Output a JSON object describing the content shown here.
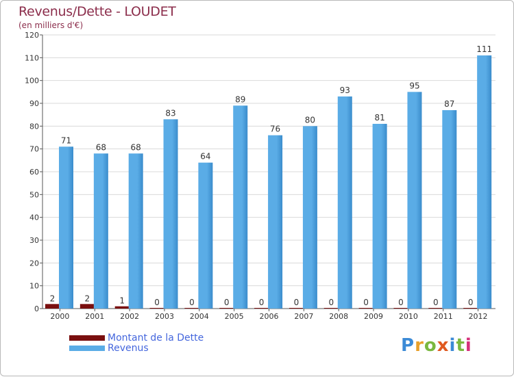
{
  "header": {
    "title": "Revenus/Dette - LOUDET",
    "subtitle": "(en milliers d'€)"
  },
  "legend": {
    "debt_label": "Montant de la Dette",
    "revenue_label": "Revenus"
  },
  "logo": {
    "letters": [
      "P",
      "r",
      "o",
      "x",
      "i",
      "t",
      "i"
    ],
    "colors": [
      "#3b8ad6",
      "#e8a02a",
      "#7ab840",
      "#e05a20",
      "#3b8ad6",
      "#7ab840",
      "#d6307a"
    ]
  },
  "colors": {
    "debt": "#7a0f0f",
    "revenue": "#5aace6",
    "revenue_dark": "#3a8ccc",
    "title": "#8b2d4b",
    "legend_text": "#4466dd",
    "grid": "#d9d9d9"
  },
  "chart_data": {
    "type": "bar",
    "title": "Revenus/Dette - LOUDET",
    "subtitle": "(en milliers d'€)",
    "xlabel": "",
    "ylabel": "",
    "categories": [
      "2000",
      "2001",
      "2002",
      "2003",
      "2004",
      "2005",
      "2006",
      "2007",
      "2008",
      "2009",
      "2010",
      "2011",
      "2012"
    ],
    "series": [
      {
        "name": "Montant de la Dette",
        "values": [
          2,
          2,
          1,
          0,
          0,
          0,
          0,
          0,
          0,
          0,
          0,
          0,
          0
        ]
      },
      {
        "name": "Revenus",
        "values": [
          71,
          68,
          68,
          83,
          64,
          89,
          76,
          80,
          93,
          81,
          95,
          87,
          111
        ]
      }
    ],
    "ylim": [
      0,
      120
    ],
    "yticks": [
      0,
      10,
      20,
      30,
      40,
      50,
      60,
      70,
      80,
      90,
      100,
      110,
      120
    ],
    "grid": true,
    "legend_position": "bottom-left"
  }
}
